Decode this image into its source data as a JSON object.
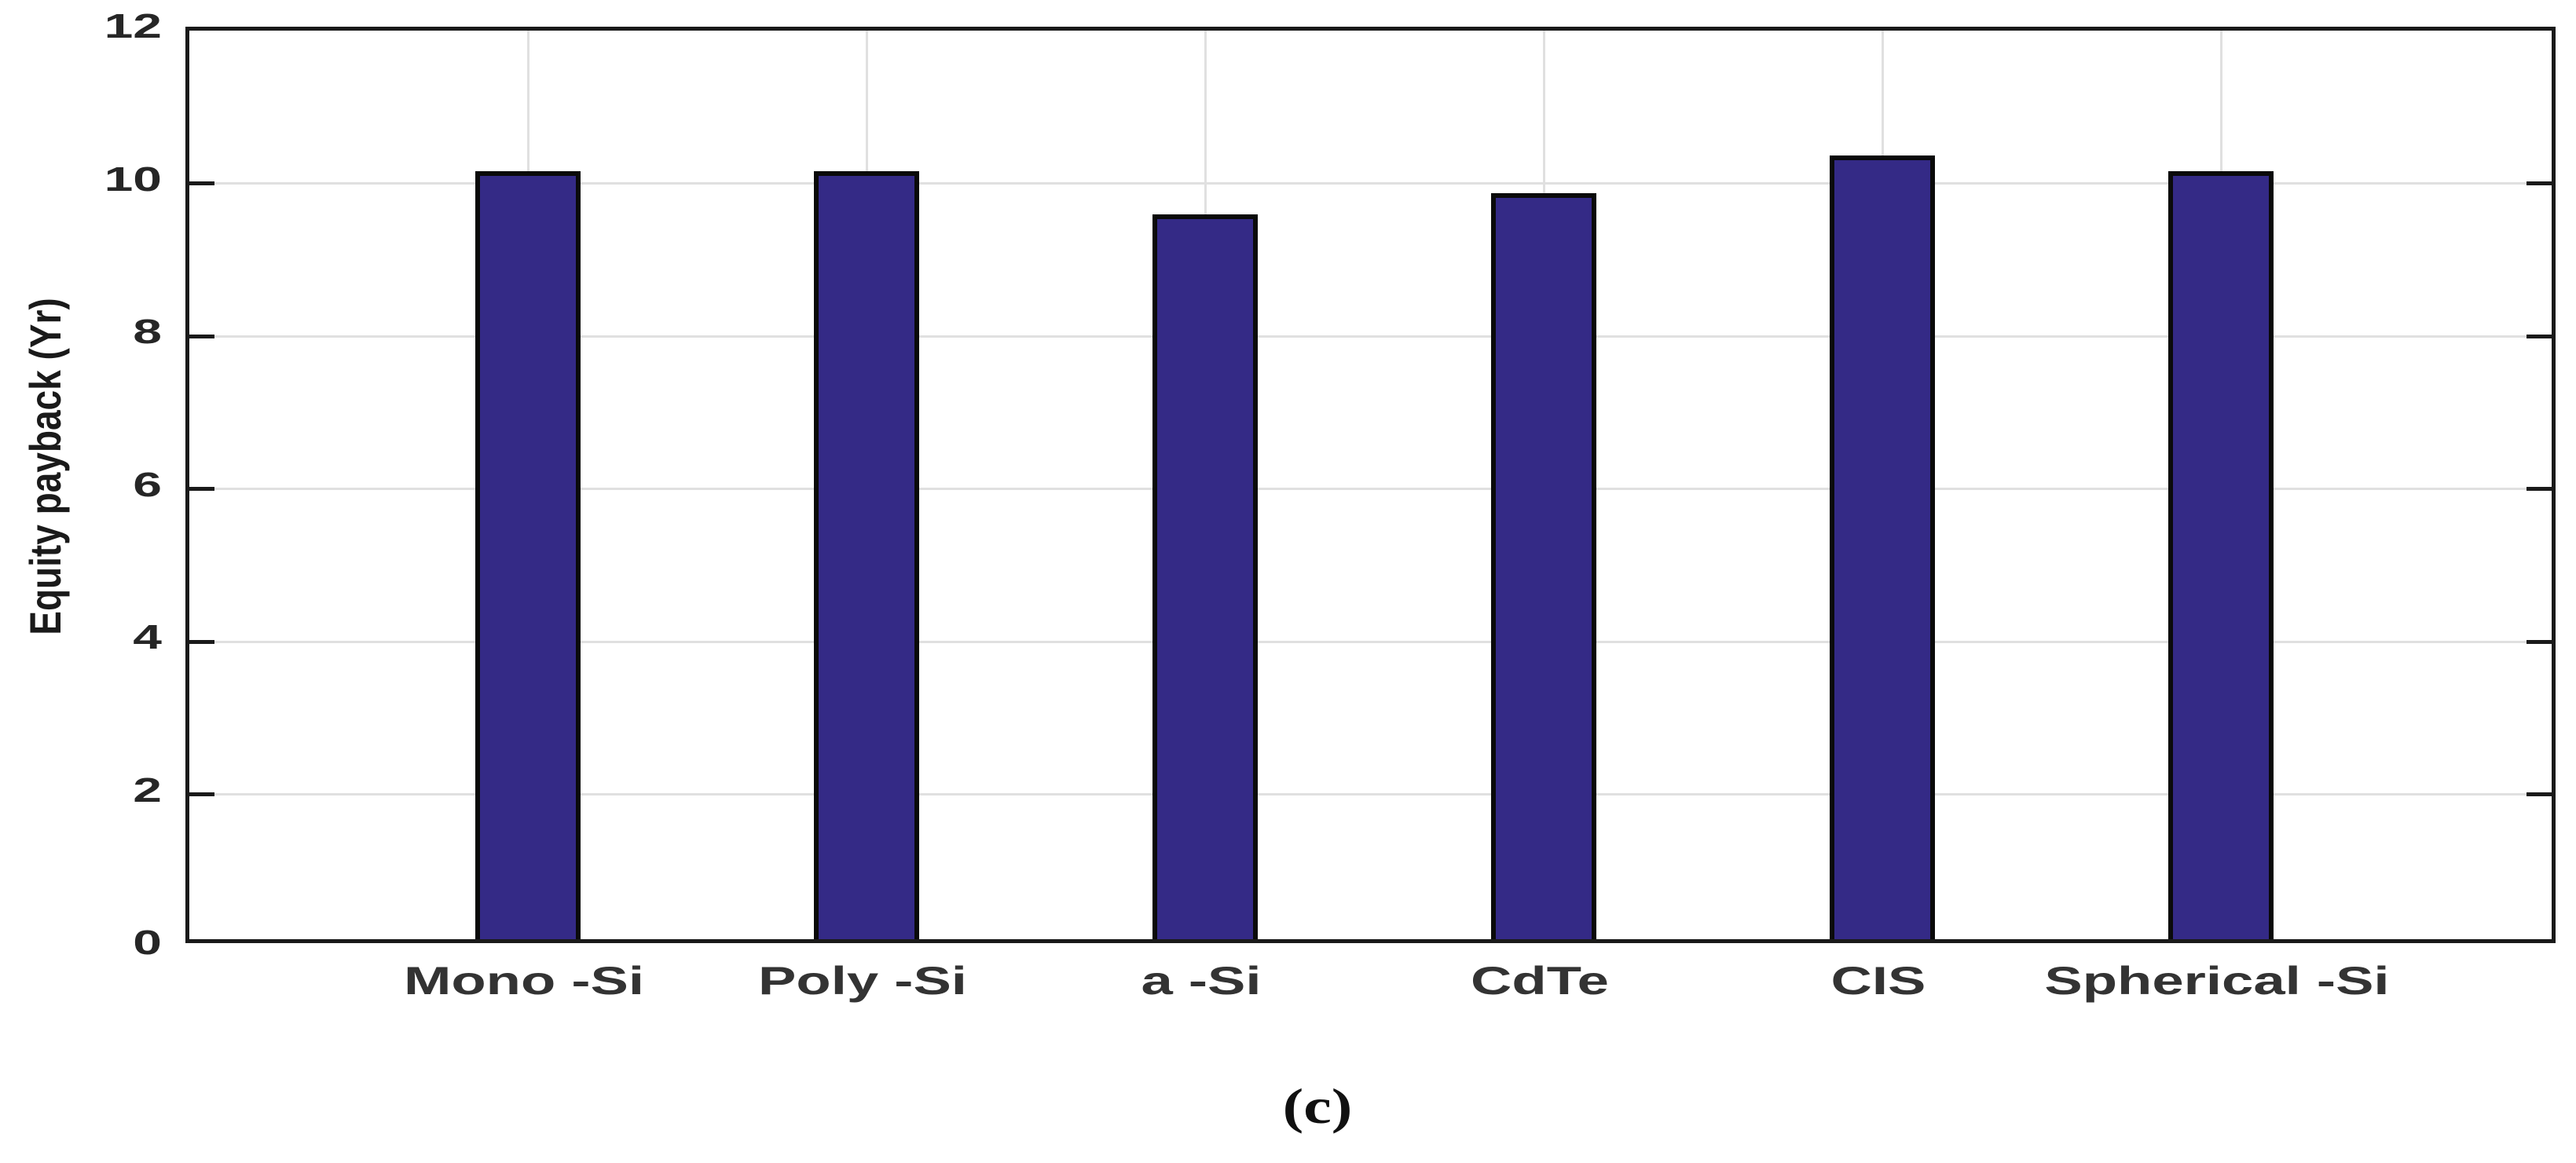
{
  "figure": {
    "caption": "(c)"
  },
  "chart_data": {
    "type": "bar",
    "title": "",
    "categories": [
      "Mono -Si",
      "Poly -Si",
      "a -Si",
      "CdTe",
      "CIS",
      "Spherical -Si"
    ],
    "values": [
      10.06,
      10.06,
      9.49,
      9.77,
      10.26,
      10.06
    ],
    "xlabel": "",
    "ylabel": "Equity payback (Yr)",
    "ylim": [
      0,
      12
    ],
    "y_ticks": [
      0,
      2,
      4,
      6,
      8,
      10,
      12
    ],
    "grid": "light gray horizontal gridlines at each y tick and vertical gridline at each category",
    "legend": "none",
    "colors": {
      "bar_fill": "#342a86",
      "bar_edge": "#0a0a0a",
      "gridline": "#e0e0e0",
      "axis_box": "#1a1a1a",
      "tick_label": "#262626",
      "category_label": "#333333"
    }
  }
}
